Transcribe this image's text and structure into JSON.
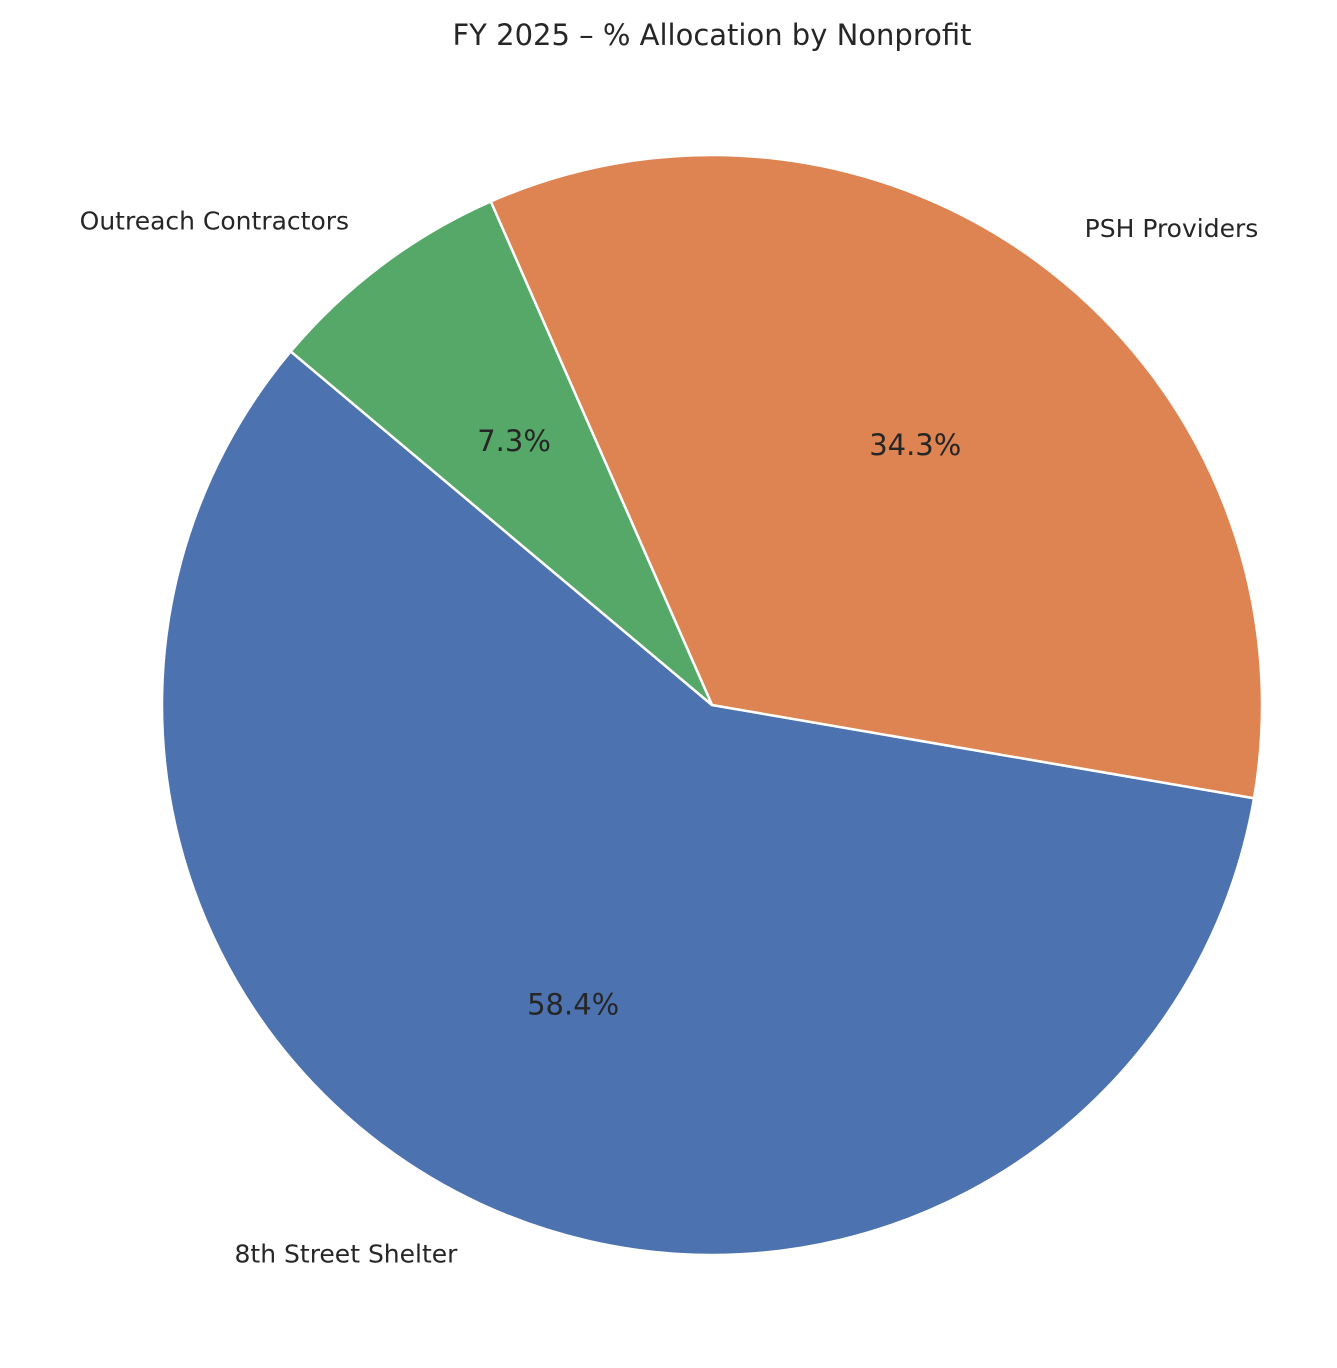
{
  "chart_data": {
    "type": "pie",
    "title": "FY 2025 – % Allocation by Nonprofit",
    "slices": [
      {
        "label": "8th Street Shelter",
        "value": 58.4,
        "pct_label": "58.4%",
        "color": "#4c72b0"
      },
      {
        "label": "PSH Providers",
        "value": 34.3,
        "pct_label": "34.3%",
        "color": "#dd8452"
      },
      {
        "label": "Outreach Contractors",
        "value": 7.3,
        "pct_label": "7.3%",
        "color": "#55a868"
      }
    ],
    "start_angle_deg": 140,
    "direction": "counterclockwise",
    "legend": "none"
  }
}
